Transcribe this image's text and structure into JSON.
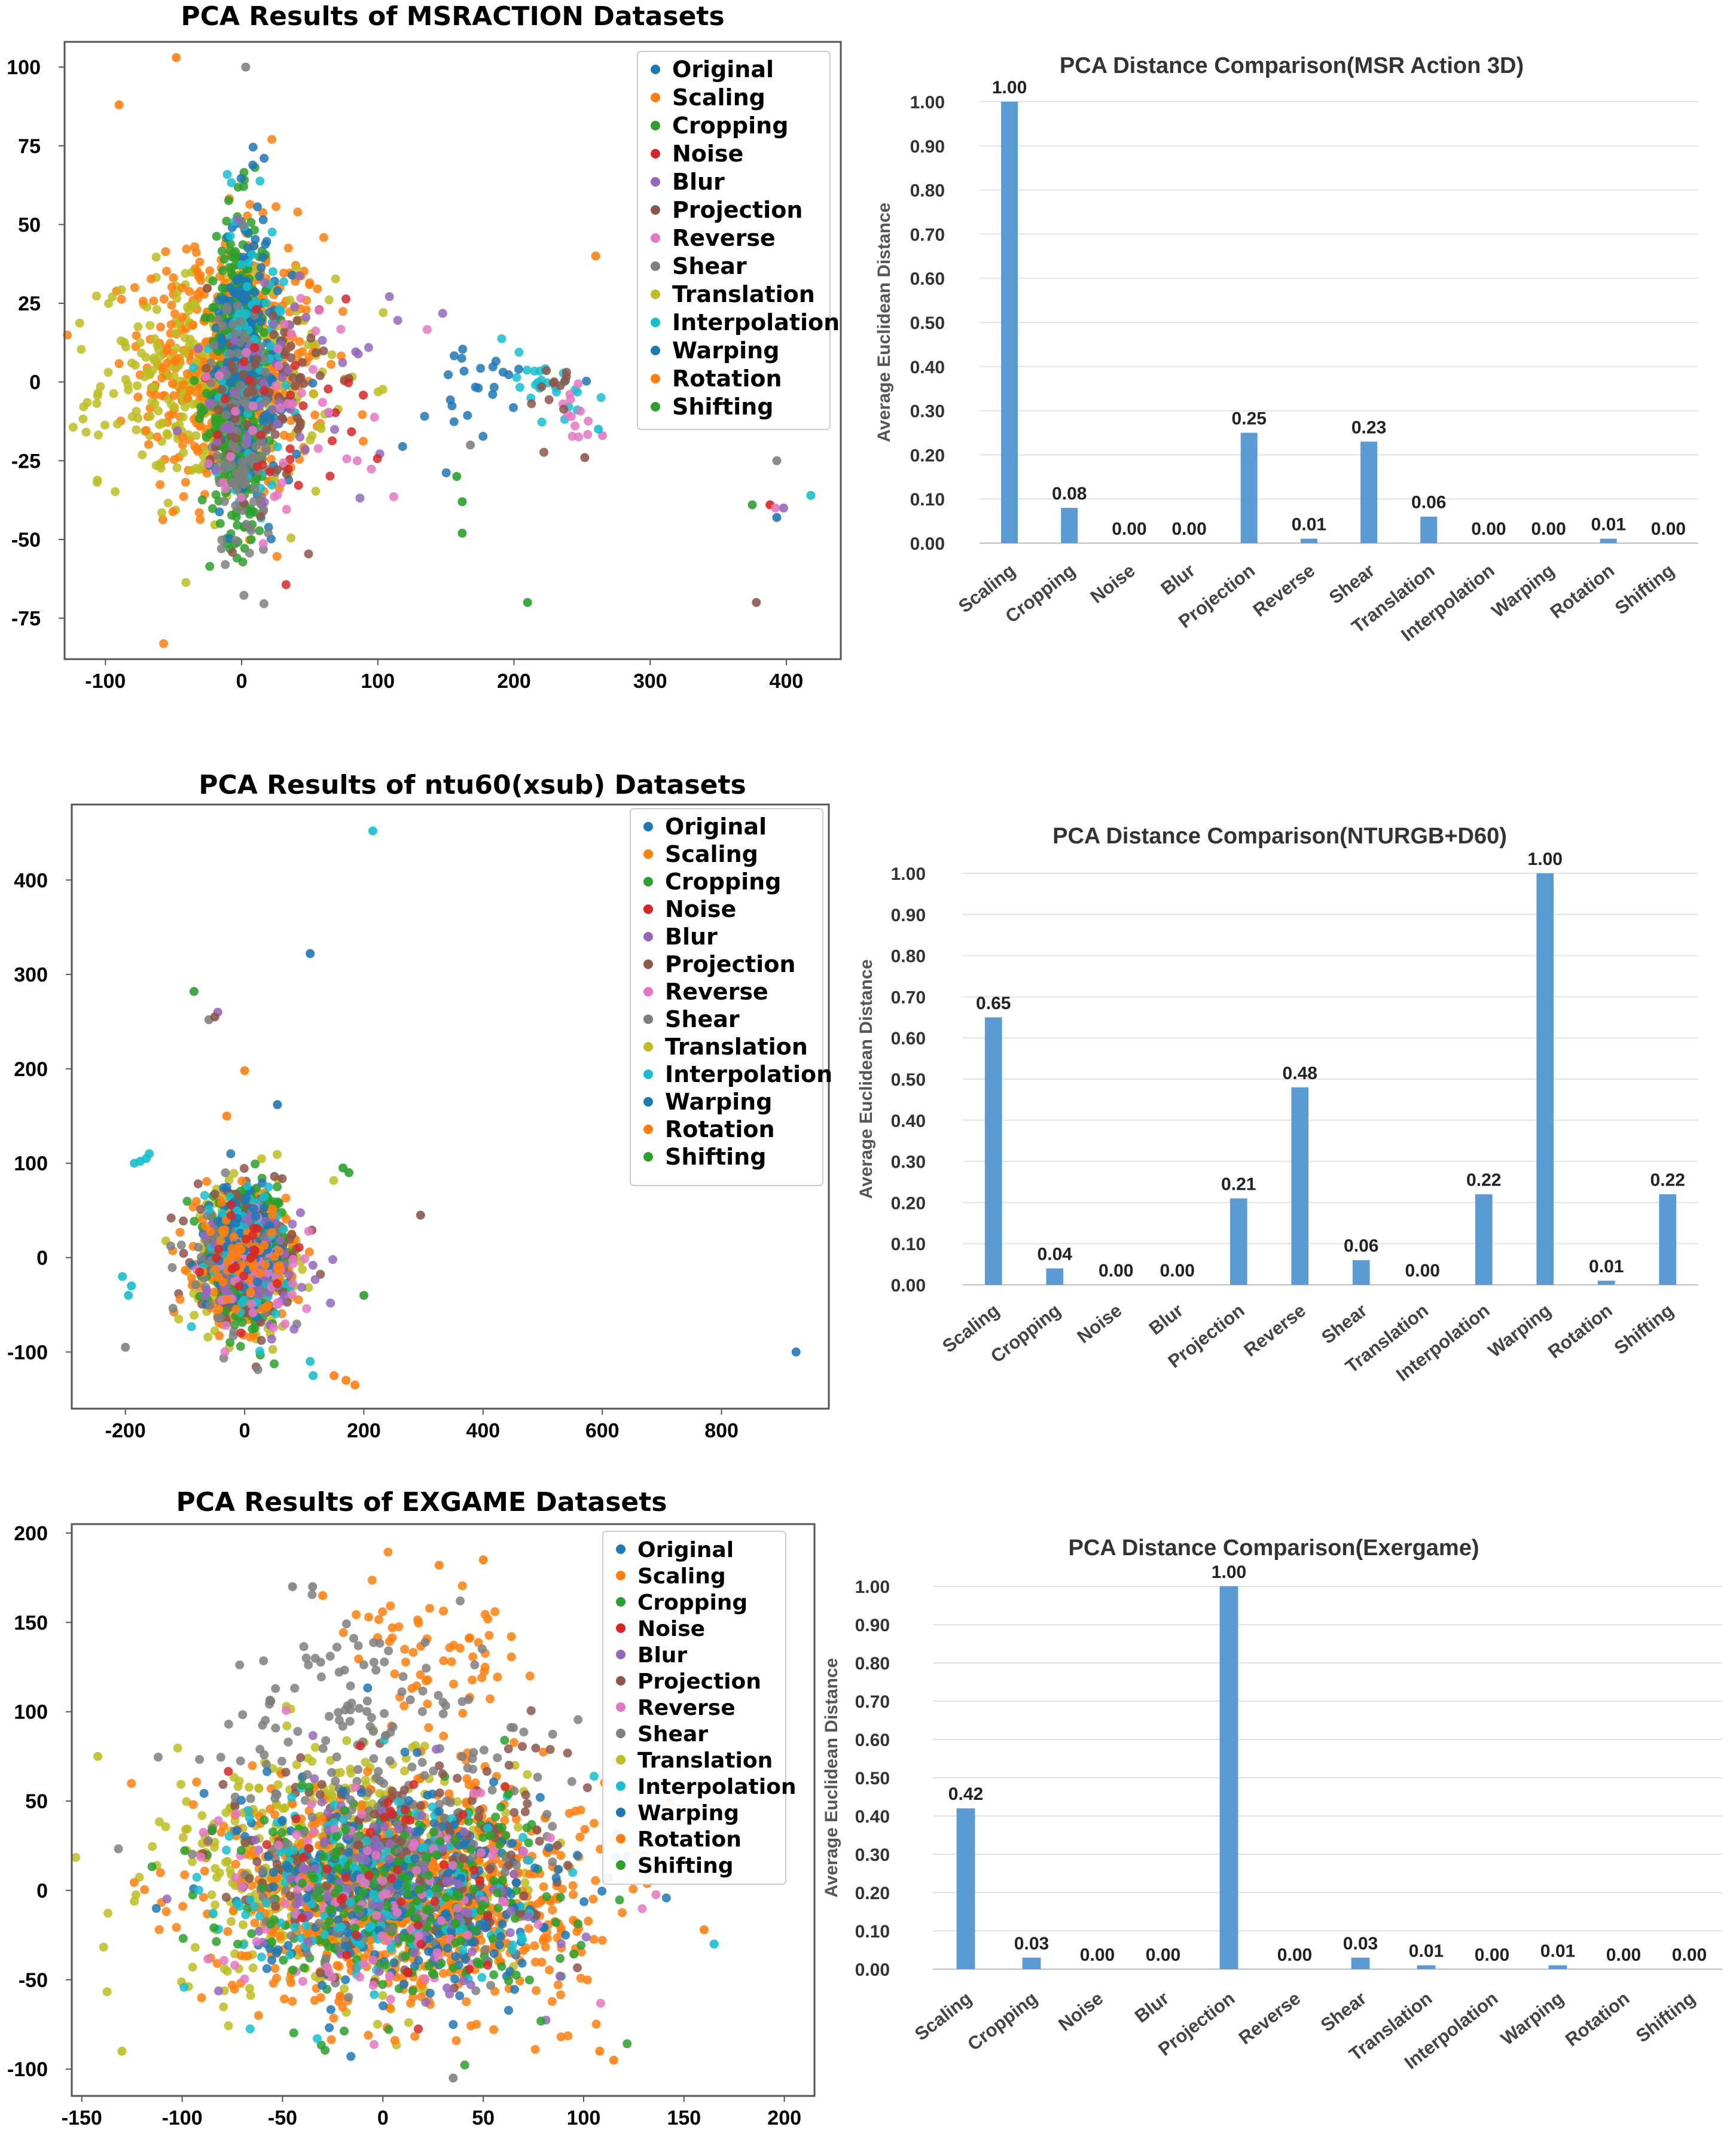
{
  "colors": {
    "Original": "#1f77b4",
    "Scaling": "#ff7f0e",
    "Cropping": "#2ca02c",
    "Noise": "#d62728",
    "Blur": "#9467bd",
    "Projection": "#8c564b",
    "Reverse": "#e377c2",
    "Shear": "#7f7f7f",
    "Translation": "#bcbd22",
    "Interpolation": "#17becf",
    "Warping": "#1f77b4",
    "Rotation": "#ff7f0e",
    "Shifting": "#2ca02c",
    "bar": "#5b9bd5"
  },
  "chart_data": [
    {
      "type": "scatter",
      "title": "PCA Results of MSRACTION Datasets",
      "xlim": [
        -130,
        440
      ],
      "ylim": [
        -88,
        108
      ],
      "xticks": [
        -100,
        0,
        100,
        200,
        300,
        400
      ],
      "yticks": [
        100,
        75,
        50,
        25,
        0,
        -25,
        -50,
        -75
      ],
      "legend": [
        "Original",
        "Scaling",
        "Cropping",
        "Noise",
        "Blur",
        "Projection",
        "Reverse",
        "Shear",
        "Translation",
        "Interpolation",
        "Warping",
        "Rotation",
        "Shifting"
      ],
      "legend_position": "top-right",
      "clusters": [
        {
          "label": "Scaling",
          "cx": -5,
          "cy": 5,
          "sx": 45,
          "sy": 28,
          "n": 420
        },
        {
          "label": "Translation",
          "cx": -20,
          "cy": 0,
          "sx": 55,
          "sy": 22,
          "n": 360
        },
        {
          "label": "Rotation",
          "cx": -15,
          "cy": 5,
          "sx": 30,
          "sy": 28,
          "n": 160
        },
        {
          "label": "Cropping",
          "cx": -2,
          "cy": -5,
          "sx": 14,
          "sy": 30,
          "n": 300
        },
        {
          "label": "Shifting",
          "cx": 0,
          "cy": 10,
          "sx": 12,
          "sy": 30,
          "n": 200
        },
        {
          "label": "Original",
          "cx": 3,
          "cy": 15,
          "sx": 12,
          "sy": 30,
          "n": 130
        },
        {
          "label": "Warping",
          "cx": 10,
          "cy": 0,
          "sx": 22,
          "sy": 25,
          "n": 80
        },
        {
          "label": "Interpolation",
          "cx": 5,
          "cy": 10,
          "sx": 18,
          "sy": 30,
          "n": 80
        },
        {
          "label": "Shear",
          "cx": 0,
          "cy": -15,
          "sx": 15,
          "sy": 30,
          "n": 120
        },
        {
          "label": "Projection",
          "cx": 20,
          "cy": -5,
          "sx": 30,
          "sy": 25,
          "n": 70
        },
        {
          "label": "Blur",
          "cx": 40,
          "cy": 0,
          "sx": 50,
          "sy": 25,
          "n": 50
        },
        {
          "label": "Noise",
          "cx": 30,
          "cy": -10,
          "sx": 40,
          "sy": 25,
          "n": 30
        },
        {
          "label": "Reverse",
          "cx": 45,
          "cy": -5,
          "sx": 50,
          "sy": 25,
          "n": 40
        },
        {
          "label": "Interpolation",
          "cx": 220,
          "cy": 0,
          "sx": 30,
          "sy": 10,
          "n": 25
        },
        {
          "label": "Original",
          "cx": 170,
          "cy": -5,
          "sx": 40,
          "sy": 12,
          "n": 25
        },
        {
          "label": "Reverse",
          "cx": 240,
          "cy": -10,
          "sx": 15,
          "sy": 8,
          "n": 12
        },
        {
          "label": "Projection",
          "cx": 230,
          "cy": -5,
          "sx": 20,
          "sy": 10,
          "n": 12
        }
      ],
      "outliers": [
        {
          "label": "Scaling",
          "x": -48,
          "y": 103
        },
        {
          "label": "Shear",
          "x": 3,
          "y": 100
        },
        {
          "label": "Scaling",
          "x": -90,
          "y": 88
        },
        {
          "label": "Scaling",
          "x": 260,
          "y": 40
        },
        {
          "label": "Cropping",
          "x": 210,
          "y": -70
        },
        {
          "label": "Projection",
          "x": 378,
          "y": -70
        },
        {
          "label": "Cropping",
          "x": 375,
          "y": -39
        },
        {
          "label": "Noise",
          "x": 388,
          "y": -39
        },
        {
          "label": "Reverse",
          "x": 392,
          "y": -40
        },
        {
          "label": "Blur",
          "x": 398,
          "y": -40
        },
        {
          "label": "Original",
          "x": 393,
          "y": -43
        },
        {
          "label": "Interpolation",
          "x": 418,
          "y": -36
        },
        {
          "label": "Shear",
          "x": 393,
          "y": -25
        },
        {
          "label": "Cropping",
          "x": 158,
          "y": -30
        },
        {
          "label": "Cropping",
          "x": 162,
          "y": -48
        },
        {
          "label": "Shear",
          "x": 168,
          "y": -20
        },
        {
          "label": "Reverse",
          "x": 265,
          "y": -17
        },
        {
          "label": "Interpolation",
          "x": 262,
          "y": -15
        },
        {
          "label": "Cropping",
          "x": 162,
          "y": -38
        },
        {
          "label": "Projection",
          "x": 252,
          "y": -24
        }
      ]
    },
    {
      "type": "bar",
      "title": "PCA Distance Comparison(MSR Action 3D)",
      "ylabel": "Average Euclidean Distance",
      "categories": [
        "Scaling",
        "Cropping",
        "Noise",
        "Blur",
        "Projection",
        "Reverse",
        "Shear",
        "Translation",
        "Interpolation",
        "Warping",
        "Rotation",
        "Shifting"
      ],
      "values": [
        1.0,
        0.08,
        0.0,
        0.0,
        0.25,
        0.01,
        0.23,
        0.06,
        0.0,
        0.0,
        0.01,
        0.0
      ],
      "value_labels": [
        "1.00",
        "0.08",
        "0.00",
        "0.00",
        "0.25",
        "0.01",
        "0.23",
        "0.06",
        "0.00",
        "0.00",
        "0.01",
        "0.00"
      ],
      "ylim": [
        0,
        1.0
      ],
      "yticks": [
        "1.00",
        "0.90",
        "0.80",
        "0.70",
        "0.60",
        "0.50",
        "0.40",
        "0.30",
        "0.20",
        "0.10",
        "0.00"
      ],
      "grid": true
    },
    {
      "type": "scatter",
      "title": "PCA Results of ntu60(xsub) Datasets",
      "xlim": [
        -290,
        980
      ],
      "ylim": [
        -160,
        480
      ],
      "xticks": [
        -200,
        0,
        200,
        400,
        600,
        800
      ],
      "yticks": [
        400,
        300,
        200,
        100,
        0,
        -100
      ],
      "legend": [
        "Original",
        "Scaling",
        "Cropping",
        "Noise",
        "Blur",
        "Projection",
        "Reverse",
        "Shear",
        "Translation",
        "Interpolation",
        "Warping",
        "Rotation",
        "Shifting"
      ],
      "legend_position": "top-right",
      "clusters": [
        {
          "label": "Translation",
          "cx": 0,
          "cy": 0,
          "sx": 55,
          "sy": 50,
          "n": 260
        },
        {
          "label": "Scaling",
          "cx": -5,
          "cy": 0,
          "sx": 50,
          "sy": 45,
          "n": 300
        },
        {
          "label": "Cropping",
          "cx": 0,
          "cy": -10,
          "sx": 40,
          "sy": 40,
          "n": 220
        },
        {
          "label": "Shifting",
          "cx": 5,
          "cy": 10,
          "sx": 45,
          "sy": 40,
          "n": 180
        },
        {
          "label": "Projection",
          "cx": 10,
          "cy": 0,
          "sx": 60,
          "sy": 45,
          "n": 140
        },
        {
          "label": "Original",
          "cx": 0,
          "cy": 20,
          "sx": 35,
          "sy": 40,
          "n": 90
        },
        {
          "label": "Shear",
          "cx": -20,
          "cy": 0,
          "sx": 55,
          "sy": 45,
          "n": 90
        },
        {
          "label": "Interpolation",
          "cx": 0,
          "cy": 10,
          "sx": 50,
          "sy": 45,
          "n": 80
        },
        {
          "label": "Blur",
          "cx": 30,
          "cy": -10,
          "sx": 60,
          "sy": 45,
          "n": 60
        },
        {
          "label": "Reverse",
          "cx": 20,
          "cy": -20,
          "sx": 55,
          "sy": 40,
          "n": 50
        },
        {
          "label": "Warping",
          "cx": 10,
          "cy": 15,
          "sx": 35,
          "sy": 35,
          "n": 40
        },
        {
          "label": "Rotation",
          "cx": 0,
          "cy": 0,
          "sx": 40,
          "sy": 40,
          "n": 60
        },
        {
          "label": "Noise",
          "cx": 0,
          "cy": 0,
          "sx": 40,
          "sy": 40,
          "n": 20
        }
      ],
      "outliers": [
        {
          "label": "Interpolation",
          "x": 215,
          "y": 452
        },
        {
          "label": "Original",
          "x": 110,
          "y": 322
        },
        {
          "label": "Shifting",
          "x": -85,
          "y": 282
        },
        {
          "label": "Blur",
          "x": -45,
          "y": 260
        },
        {
          "label": "Shear",
          "x": -60,
          "y": 252
        },
        {
          "label": "Projection",
          "x": -50,
          "y": 255
        },
        {
          "label": "Scaling",
          "x": 0,
          "y": 198
        },
        {
          "label": "Original",
          "x": 55,
          "y": 162
        },
        {
          "label": "Scaling",
          "x": -30,
          "y": 150
        },
        {
          "label": "Interpolation",
          "x": -160,
          "y": 110
        },
        {
          "label": "Interpolation",
          "x": -165,
          "y": 105
        },
        {
          "label": "Interpolation",
          "x": -175,
          "y": 102
        },
        {
          "label": "Interpolation",
          "x": -185,
          "y": 100
        },
        {
          "label": "Interpolation",
          "x": -205,
          "y": -20
        },
        {
          "label": "Interpolation",
          "x": -195,
          "y": -40
        },
        {
          "label": "Interpolation",
          "x": -190,
          "y": -30
        },
        {
          "label": "Shear",
          "x": -200,
          "y": -95
        },
        {
          "label": "Interpolation",
          "x": 110,
          "y": -110
        },
        {
          "label": "Interpolation",
          "x": 115,
          "y": -125
        },
        {
          "label": "Scaling",
          "x": 150,
          "y": -125
        },
        {
          "label": "Scaling",
          "x": 185,
          "y": -135
        },
        {
          "label": "Scaling",
          "x": 170,
          "y": -130
        },
        {
          "label": "Projection",
          "x": 295,
          "y": 45
        },
        {
          "label": "Shifting",
          "x": 200,
          "y": -40
        },
        {
          "label": "Original",
          "x": 925,
          "y": -100
        },
        {
          "label": "Shifting",
          "x": 165,
          "y": 95
        },
        {
          "label": "Shifting",
          "x": 175,
          "y": 90
        }
      ]
    },
    {
      "type": "bar",
      "title": "PCA Distance Comparison(NTURGB+D60)",
      "ylabel": "Average Euclidean Distance",
      "categories": [
        "Scaling",
        "Cropping",
        "Noise",
        "Blur",
        "Projection",
        "Reverse",
        "Shear",
        "Translation",
        "Interpolation",
        "Warping",
        "Rotation",
        "Shifting"
      ],
      "values": [
        0.65,
        0.04,
        0.0,
        0.0,
        0.21,
        0.48,
        0.06,
        0.0,
        0.22,
        1.0,
        0.01,
        0.22
      ],
      "value_labels": [
        "0.65",
        "0.04",
        "0.00",
        "0.00",
        "0.21",
        "0.48",
        "0.06",
        "0.00",
        "0.22",
        "1.00",
        "0.01",
        "0.22"
      ],
      "ylim": [
        0,
        1.0
      ],
      "yticks": [
        "1.00",
        "0.90",
        "0.80",
        "0.70",
        "0.60",
        "0.50",
        "0.40",
        "0.30",
        "0.20",
        "0.10",
        "0.00"
      ],
      "grid": true
    },
    {
      "type": "scatter",
      "title": "PCA Results of EXGAME Datasets",
      "xlim": [
        -155,
        215
      ],
      "ylim": [
        -115,
        205
      ],
      "xticks": [
        -150,
        -100,
        -50,
        0,
        50,
        100,
        150,
        200
      ],
      "yticks": [
        200,
        150,
        100,
        50,
        0,
        -50,
        -100
      ],
      "legend": [
        "Original",
        "Scaling",
        "Cropping",
        "Noise",
        "Blur",
        "Projection",
        "Reverse",
        "Shear",
        "Translation",
        "Interpolation",
        "Warping",
        "Rotation",
        "Shifting"
      ],
      "legend_position": "top-right",
      "clusters": [
        {
          "label": "Translation",
          "cx": -20,
          "cy": 10,
          "sx": 60,
          "sy": 45,
          "n": 500
        },
        {
          "label": "Scaling",
          "cx": 10,
          "cy": 0,
          "sx": 55,
          "sy": 40,
          "n": 650
        },
        {
          "label": "Rotation",
          "cx": 20,
          "cy": -5,
          "sx": 60,
          "sy": 40,
          "n": 300
        },
        {
          "label": "Original",
          "cx": 10,
          "cy": 0,
          "sx": 50,
          "sy": 35,
          "n": 200
        },
        {
          "label": "Cropping",
          "cx": 0,
          "cy": 0,
          "sx": 55,
          "sy": 38,
          "n": 200
        },
        {
          "label": "Shear",
          "cx": 0,
          "cy": 30,
          "sx": 60,
          "sy": 50,
          "n": 220
        },
        {
          "label": "Projection",
          "cx": 10,
          "cy": 20,
          "sx": 60,
          "sy": 45,
          "n": 160
        },
        {
          "label": "Interpolation",
          "cx": 0,
          "cy": 0,
          "sx": 60,
          "sy": 40,
          "n": 160
        },
        {
          "label": "Warping",
          "cx": 10,
          "cy": 0,
          "sx": 55,
          "sy": 40,
          "n": 120
        },
        {
          "label": "Blur",
          "cx": 0,
          "cy": 0,
          "sx": 55,
          "sy": 40,
          "n": 100
        },
        {
          "label": "Reverse",
          "cx": 0,
          "cy": 0,
          "sx": 55,
          "sy": 40,
          "n": 100
        },
        {
          "label": "Shifting",
          "cx": 10,
          "cy": 0,
          "sx": 55,
          "sy": 40,
          "n": 100
        },
        {
          "label": "Noise",
          "cx": 0,
          "cy": 0,
          "sx": 50,
          "sy": 40,
          "n": 40
        },
        {
          "label": "Scaling",
          "cx": 30,
          "cy": 130,
          "sx": 30,
          "sy": 25,
          "n": 60
        },
        {
          "label": "Shear",
          "cx": -10,
          "cy": 110,
          "sx": 40,
          "sy": 25,
          "n": 60
        }
      ],
      "outliers": [
        {
          "label": "Scaling",
          "x": 50,
          "y": 185
        },
        {
          "label": "Scaling",
          "x": 28,
          "y": 182
        },
        {
          "label": "Scaling",
          "x": -30,
          "y": 165
        },
        {
          "label": "Shear",
          "x": -45,
          "y": 170
        },
        {
          "label": "Shear",
          "x": -35,
          "y": 170
        },
        {
          "label": "Translation",
          "x": -142,
          "y": 75
        },
        {
          "label": "Scaling",
          "x": 115,
          "y": -95
        },
        {
          "label": "Scaling",
          "x": 108,
          "y": -90
        },
        {
          "label": "Shear",
          "x": 35,
          "y": -105
        },
        {
          "label": "Translation",
          "x": -130,
          "y": -90
        },
        {
          "label": "Scaling",
          "x": 160,
          "y": -22
        },
        {
          "label": "Interpolation",
          "x": 165,
          "y": -30
        }
      ]
    },
    {
      "type": "bar",
      "title": "PCA Distance Comparison(Exergame)",
      "ylabel": "Average Euclidean Distance",
      "categories": [
        "Scaling",
        "Cropping",
        "Noise",
        "Blur",
        "Projection",
        "Reverse",
        "Shear",
        "Translation",
        "Interpolation",
        "Warping",
        "Rotation",
        "Shifting"
      ],
      "values": [
        0.42,
        0.03,
        0.0,
        0.0,
        1.0,
        0.0,
        0.03,
        0.01,
        0.0,
        0.01,
        0.0,
        0.0
      ],
      "value_labels": [
        "0.42",
        "0.03",
        "0.00",
        "0.00",
        "1.00",
        "0.00",
        "0.03",
        "0.01",
        "0.00",
        "0.01",
        "0.00",
        "0.00"
      ],
      "ylim": [
        0,
        1.0
      ],
      "yticks": [
        "1.00",
        "0.90",
        "0.80",
        "0.70",
        "0.60",
        "0.50",
        "0.40",
        "0.30",
        "0.20",
        "0.10",
        "0.00"
      ],
      "grid": true
    }
  ]
}
